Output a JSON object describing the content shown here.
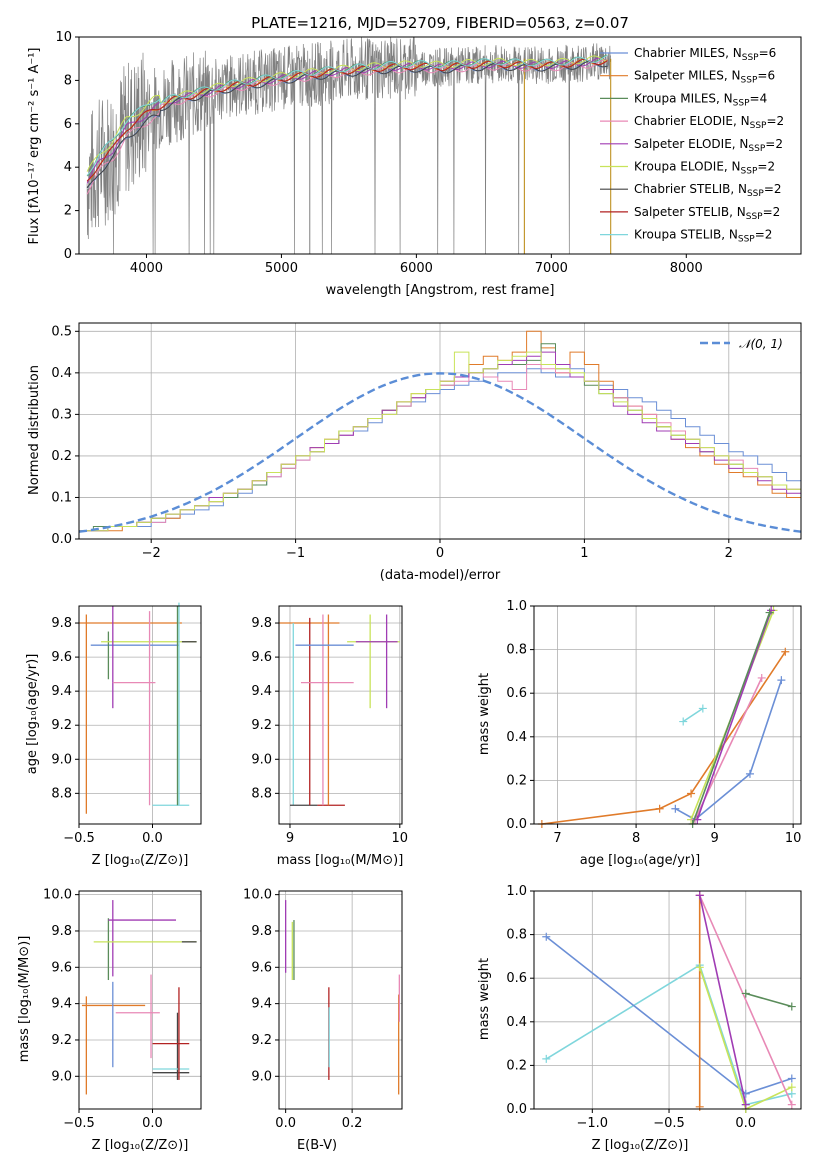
{
  "colors": {
    "s1": "#6b8fd6",
    "s2": "#e07b2a",
    "s3": "#5a8c5a",
    "s4": "#e889b6",
    "s5": "#a03cb4",
    "s6": "#c8e35a",
    "s7": "#444444",
    "s8": "#b22222",
    "s9": "#7fd6dc",
    "gray": "#808080",
    "dash": "#5b8dd6"
  },
  "chart_data": [
    {
      "type": "line",
      "title": "PLATE=1216, MJD=52709, FIBERID=0563, z=0.07",
      "xlabel": "wavelength [Angstrom, rest frame]",
      "ylabel": "Flux [fλ10⁻¹⁷ erg cm⁻² s⁻¹ A⁻¹]",
      "xlim": [
        3500,
        8850
      ],
      "ylim": [
        0,
        10
      ],
      "xticks": [
        "4000",
        "5000",
        "6000",
        "7000",
        "8000"
      ],
      "yticks": [
        "0",
        "2",
        "4",
        "6",
        "8",
        "10"
      ],
      "legend_position": "right",
      "legend": [
        {
          "text": "Chabrier MILES, N",
          "sub": "SSP",
          "tail": "=6"
        },
        {
          "text": "Salpeter MILES, N",
          "sub": "SSP",
          "tail": "=6"
        },
        {
          "text": "Kroupa MILES, N",
          "sub": "SSP",
          "tail": "=4"
        },
        {
          "text": "Chabrier ELODIE, N",
          "sub": "SSP",
          "tail": "=2"
        },
        {
          "text": "Salpeter ELODIE, N",
          "sub": "SSP",
          "tail": "=2"
        },
        {
          "text": "Kroupa ELODIE, N",
          "sub": "SSP",
          "tail": "=2"
        },
        {
          "text": "Chabrier STELIB, N",
          "sub": "SSP",
          "tail": "=2"
        },
        {
          "text": "Salpeter STELIB, N",
          "sub": "SSP",
          "tail": "=2"
        },
        {
          "text": "Kroupa STELIB, N",
          "sub": "SSP",
          "tail": "=2"
        }
      ],
      "model_curve": {
        "x": [
          3550,
          3650,
          3750,
          3850,
          3950,
          4050,
          4200,
          4400,
          4600,
          4800,
          5000,
          5200,
          5400,
          5600,
          5800,
          6000,
          6200,
          6400,
          6600,
          6800,
          7000,
          7200,
          7400
        ],
        "y": [
          3.2,
          4.2,
          4.8,
          5.8,
          6.2,
          6.7,
          7.1,
          7.4,
          7.7,
          7.9,
          8.1,
          8.25,
          8.4,
          8.5,
          8.6,
          8.65,
          8.6,
          8.7,
          8.75,
          8.7,
          8.7,
          8.8,
          8.9
        ]
      },
      "observed_wavelength_range": [
        3560,
        7440
      ]
    },
    {
      "type": "histogram",
      "xlabel": "(data-model)/error",
      "ylabel": "Normed distribution",
      "xlim": [
        -2.5,
        2.5
      ],
      "ylim": [
        0,
        0.52
      ],
      "xticks": [
        "−2",
        "−1",
        "0",
        "1",
        "2"
      ],
      "yticks": [
        "0.0",
        "0.1",
        "0.2",
        "0.3",
        "0.4",
        "0.5"
      ],
      "legend": "𝒩(0, 1)",
      "legend_position": "top-right",
      "bin_width": 0.1,
      "bins_from": -2.5,
      "reference_curve": "normal pdf, mean 0, sd 1",
      "series": [
        {
          "values": [
            0.02,
            0.02,
            0.03,
            0.03,
            0.03,
            0.04,
            0.05,
            0.06,
            0.07,
            0.08,
            0.1,
            0.11,
            0.13,
            0.15,
            0.17,
            0.19,
            0.21,
            0.23,
            0.25,
            0.26,
            0.28,
            0.3,
            0.32,
            0.33,
            0.35,
            0.36,
            0.37,
            0.38,
            0.39,
            0.4,
            0.4,
            0.41,
            0.4,
            0.39,
            0.41,
            0.38,
            0.37,
            0.36,
            0.34,
            0.33,
            0.31,
            0.29,
            0.27,
            0.25,
            0.23,
            0.21,
            0.2,
            0.18,
            0.16,
            0.14
          ]
        },
        {
          "values": [
            0.02,
            0.02,
            0.02,
            0.03,
            0.04,
            0.05,
            0.05,
            0.07,
            0.08,
            0.09,
            0.11,
            0.12,
            0.14,
            0.16,
            0.18,
            0.2,
            0.22,
            0.24,
            0.26,
            0.27,
            0.29,
            0.31,
            0.33,
            0.35,
            0.36,
            0.38,
            0.39,
            0.42,
            0.44,
            0.43,
            0.45,
            0.5,
            0.46,
            0.4,
            0.45,
            0.42,
            0.38,
            0.34,
            0.32,
            0.3,
            0.27,
            0.24,
            0.22,
            0.2,
            0.18,
            0.16,
            0.15,
            0.13,
            0.11,
            0.1
          ]
        },
        {
          "values": [
            0.02,
            0.03,
            0.03,
            0.03,
            0.04,
            0.05,
            0.06,
            0.07,
            0.08,
            0.09,
            0.1,
            0.12,
            0.13,
            0.16,
            0.17,
            0.2,
            0.21,
            0.23,
            0.26,
            0.27,
            0.29,
            0.31,
            0.32,
            0.34,
            0.36,
            0.37,
            0.39,
            0.4,
            0.41,
            0.42,
            0.42,
            0.43,
            0.47,
            0.41,
            0.39,
            0.37,
            0.35,
            0.34,
            0.31,
            0.29,
            0.27,
            0.25,
            0.24,
            0.21,
            0.2,
            0.18,
            0.16,
            0.15,
            0.13,
            0.12
          ]
        },
        {
          "values": [
            0.02,
            0.02,
            0.03,
            0.03,
            0.04,
            0.04,
            0.06,
            0.07,
            0.08,
            0.09,
            0.11,
            0.12,
            0.14,
            0.15,
            0.17,
            0.19,
            0.21,
            0.24,
            0.25,
            0.27,
            0.29,
            0.3,
            0.32,
            0.34,
            0.36,
            0.37,
            0.38,
            0.4,
            0.39,
            0.38,
            0.36,
            0.42,
            0.41,
            0.4,
            0.39,
            0.38,
            0.36,
            0.34,
            0.32,
            0.3,
            0.28,
            0.26,
            0.24,
            0.22,
            0.2,
            0.19,
            0.17,
            0.15,
            0.13,
            0.12
          ]
        },
        {
          "values": [
            0.02,
            0.02,
            0.03,
            0.03,
            0.04,
            0.05,
            0.06,
            0.07,
            0.08,
            0.1,
            0.11,
            0.12,
            0.14,
            0.16,
            0.18,
            0.2,
            0.22,
            0.23,
            0.25,
            0.27,
            0.29,
            0.31,
            0.33,
            0.34,
            0.36,
            0.38,
            0.39,
            0.4,
            0.41,
            0.42,
            0.43,
            0.44,
            0.45,
            0.42,
            0.39,
            0.38,
            0.36,
            0.32,
            0.3,
            0.28,
            0.26,
            0.24,
            0.23,
            0.21,
            0.19,
            0.17,
            0.16,
            0.14,
            0.12,
            0.11
          ]
        },
        {
          "values": [
            0.02,
            0.02,
            0.03,
            0.03,
            0.04,
            0.05,
            0.06,
            0.07,
            0.08,
            0.09,
            0.11,
            0.12,
            0.14,
            0.16,
            0.18,
            0.2,
            0.21,
            0.24,
            0.26,
            0.27,
            0.29,
            0.3,
            0.33,
            0.35,
            0.36,
            0.38,
            0.45,
            0.4,
            0.41,
            0.43,
            0.44,
            0.45,
            0.42,
            0.41,
            0.4,
            0.38,
            0.35,
            0.33,
            0.31,
            0.29,
            0.27,
            0.25,
            0.24,
            0.22,
            0.2,
            0.18,
            0.16,
            0.15,
            0.13,
            0.12
          ]
        }
      ]
    },
    {
      "type": "scatter",
      "ylabel": "age  [log₁₀(age/yr)]",
      "xlabel": "Z [log₁₀(Z/Z⊙)]",
      "xlim": [
        -0.5,
        0.33
      ],
      "ylim": [
        8.62,
        9.9
      ],
      "xticks": [
        "−0.5",
        "0.0"
      ],
      "yticks": [
        "8.8",
        "9.0",
        "9.2",
        "9.4",
        "9.6",
        "9.8"
      ]
    },
    {
      "type": "scatter",
      "xlabel": "mass [log₁₀(M/M⊙)]",
      "xlim": [
        8.9,
        10.02
      ],
      "ylim": [
        8.62,
        9.9
      ],
      "xticks": [
        "9",
        "10"
      ],
      "yticks": [
        "8.8",
        "9.0",
        "9.2",
        "9.4",
        "9.6",
        "9.8"
      ]
    },
    {
      "type": "line",
      "xlabel": "age  [log₁₀(age/yr)]",
      "ylabel": "mass weight",
      "xlim": [
        6.7,
        10.1
      ],
      "ylim": [
        0,
        1
      ],
      "xticks": [
        "7",
        "8",
        "9",
        "10"
      ],
      "yticks": [
        "0.0",
        "0.2",
        "0.4",
        "0.6",
        "0.8",
        "1.0"
      ],
      "series": [
        {
          "x": [
            8.6,
            8.85
          ],
          "y": [
            0.47,
            0.53
          ]
        },
        {
          "x": [
            8.5,
            8.75,
            9.45,
            9.85
          ],
          "y": [
            0.07,
            0.02,
            0.23,
            0.66
          ]
        },
        {
          "x": [
            6.8,
            8.3,
            8.7,
            9.9
          ],
          "y": [
            0.0,
            0.07,
            0.14,
            0.79
          ]
        },
        {
          "x": [
            8.7,
            9.75
          ],
          "y": [
            0.02,
            0.98
          ]
        },
        {
          "x": [
            8.75,
            9.6
          ],
          "y": [
            0.02,
            0.67
          ]
        },
        {
          "x": [
            8.78,
            9.72
          ],
          "y": [
            0.02,
            0.98
          ]
        },
        {
          "x": [
            8.72,
            9.7
          ],
          "y": [
            0.0,
            0.97
          ]
        }
      ]
    },
    {
      "type": "scatter",
      "ylabel": "mass [log₁₀(M/M⊙)]",
      "xlabel": "Z [log₁₀(Z/Z⊙)]",
      "xlim": [
        -0.5,
        0.33
      ],
      "ylim": [
        8.82,
        10.02
      ],
      "xticks": [
        "−0.5",
        "0.0"
      ],
      "yticks": [
        "9.0",
        "9.2",
        "9.4",
        "9.6",
        "9.8",
        "10.0"
      ]
    },
    {
      "type": "scatter",
      "xlabel": "E(B-V)",
      "xlim": [
        -0.02,
        0.35
      ],
      "ylim": [
        8.82,
        10.02
      ],
      "xticks": [
        "0.0",
        "0.2"
      ],
      "yticks": [
        "9.0",
        "9.2",
        "9.4",
        "9.6",
        "9.8",
        "10.0"
      ]
    },
    {
      "type": "line",
      "xlabel": "Z [log₁₀(Z/Z⊙)]",
      "ylabel": "mass weight",
      "xlim": [
        -1.38,
        0.36
      ],
      "ylim": [
        0,
        1
      ],
      "xticks": [
        "−1.0",
        "−0.5",
        "0.0"
      ],
      "yticks": [
        "0.0",
        "0.2",
        "0.4",
        "0.6",
        "0.8",
        "1.0"
      ],
      "series": [
        {
          "x": [
            -1.3,
            -0.3,
            0.0,
            0.3
          ],
          "y": [
            0.23,
            0.66,
            0.02,
            0.07
          ]
        },
        {
          "x": [
            -1.3,
            0.0,
            0.3
          ],
          "y": [
            0.79,
            0.07,
            0.14
          ]
        },
        {
          "x": [
            -0.3,
            -0.3
          ],
          "y": [
            0.98,
            0.01
          ]
        },
        {
          "x": [
            -0.3,
            0.0,
            0.3
          ],
          "y": [
            0.65,
            0.0,
            0.1
          ]
        },
        {
          "x": [
            -0.3,
            0.3
          ],
          "y": [
            0.98,
            0.02
          ]
        },
        {
          "x": [
            -0.3,
            0.0
          ],
          "y": [
            0.98,
            0.02
          ]
        },
        {
          "x": [
            0.0,
            0.3
          ],
          "y": [
            0.53,
            0.47
          ]
        }
      ]
    }
  ]
}
